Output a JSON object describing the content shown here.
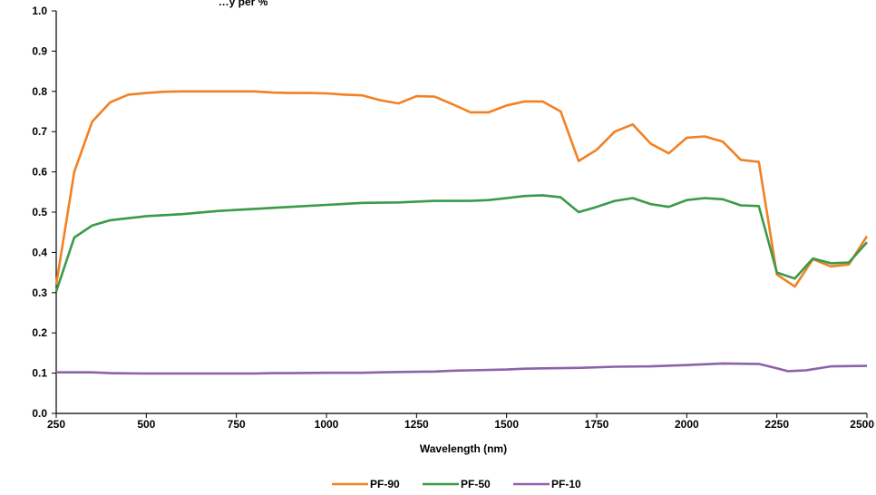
{
  "chart_data": {
    "type": "line",
    "title": "",
    "title_fragment": "…y per %",
    "xlabel": "Wavelength (nm)",
    "ylabel": "",
    "xlim": [
      250,
      2500
    ],
    "ylim": [
      0,
      1.0
    ],
    "x_ticks": [
      250,
      500,
      750,
      1000,
      1250,
      1500,
      1750,
      2000,
      2250,
      2500
    ],
    "x_tick_labels": [
      "250",
      "500",
      "750",
      "1000",
      "1250",
      "1500",
      "1750",
      "2000",
      "2250",
      "2500"
    ],
    "y_ticks": [
      0,
      0.1,
      0.2,
      0.3,
      0.4,
      0.5,
      0.6,
      0.7,
      0.8,
      0.9,
      1.0
    ],
    "y_tick_labels": [
      "0.0",
      "0.1",
      "0.2",
      "0.3",
      "0.4",
      "0.5",
      "0.6",
      "0.7",
      "0.8",
      "0.9",
      "1.0"
    ],
    "grid": false,
    "legend_position": "bottom-center",
    "series": [
      {
        "name": "PF-90",
        "color": "#F28124",
        "points": [
          [
            250,
            0.32
          ],
          [
            300,
            0.6
          ],
          [
            350,
            0.725
          ],
          [
            400,
            0.773
          ],
          [
            450,
            0.792
          ],
          [
            500,
            0.796
          ],
          [
            550,
            0.799
          ],
          [
            600,
            0.8
          ],
          [
            650,
            0.8
          ],
          [
            700,
            0.8
          ],
          [
            750,
            0.8
          ],
          [
            800,
            0.8
          ],
          [
            850,
            0.797
          ],
          [
            900,
            0.796
          ],
          [
            950,
            0.796
          ],
          [
            1000,
            0.795
          ],
          [
            1050,
            0.792
          ],
          [
            1100,
            0.79
          ],
          [
            1150,
            0.778
          ],
          [
            1200,
            0.77
          ],
          [
            1250,
            0.788
          ],
          [
            1300,
            0.787
          ],
          [
            1350,
            0.768
          ],
          [
            1400,
            0.748
          ],
          [
            1450,
            0.748
          ],
          [
            1500,
            0.765
          ],
          [
            1550,
            0.775
          ],
          [
            1600,
            0.775
          ],
          [
            1650,
            0.75
          ],
          [
            1700,
            0.627
          ],
          [
            1750,
            0.655
          ],
          [
            1800,
            0.7
          ],
          [
            1850,
            0.718
          ],
          [
            1900,
            0.67
          ],
          [
            1950,
            0.646
          ],
          [
            2000,
            0.685
          ],
          [
            2050,
            0.688
          ],
          [
            2100,
            0.675
          ],
          [
            2150,
            0.63
          ],
          [
            2200,
            0.625
          ],
          [
            2250,
            0.345
          ],
          [
            2300,
            0.315
          ],
          [
            2350,
            0.383
          ],
          [
            2400,
            0.365
          ],
          [
            2450,
            0.37
          ],
          [
            2500,
            0.44
          ]
        ]
      },
      {
        "name": "PF-50",
        "color": "#3A9A48",
        "points": [
          [
            250,
            0.303
          ],
          [
            300,
            0.437
          ],
          [
            350,
            0.467
          ],
          [
            400,
            0.48
          ],
          [
            450,
            0.485
          ],
          [
            500,
            0.49
          ],
          [
            600,
            0.495
          ],
          [
            700,
            0.503
          ],
          [
            800,
            0.508
          ],
          [
            900,
            0.513
          ],
          [
            1000,
            0.518
          ],
          [
            1100,
            0.523
          ],
          [
            1200,
            0.524
          ],
          [
            1300,
            0.528
          ],
          [
            1400,
            0.528
          ],
          [
            1450,
            0.53
          ],
          [
            1500,
            0.535
          ],
          [
            1550,
            0.54
          ],
          [
            1600,
            0.542
          ],
          [
            1650,
            0.537
          ],
          [
            1700,
            0.5
          ],
          [
            1750,
            0.513
          ],
          [
            1800,
            0.528
          ],
          [
            1850,
            0.535
          ],
          [
            1900,
            0.52
          ],
          [
            1950,
            0.513
          ],
          [
            2000,
            0.53
          ],
          [
            2050,
            0.535
          ],
          [
            2100,
            0.532
          ],
          [
            2150,
            0.517
          ],
          [
            2200,
            0.515
          ],
          [
            2250,
            0.35
          ],
          [
            2300,
            0.335
          ],
          [
            2350,
            0.385
          ],
          [
            2400,
            0.373
          ],
          [
            2450,
            0.375
          ],
          [
            2500,
            0.425
          ]
        ]
      },
      {
        "name": "PF-10",
        "color": "#8C62AA",
        "points": [
          [
            250,
            0.102
          ],
          [
            300,
            0.102
          ],
          [
            350,
            0.102
          ],
          [
            400,
            0.1
          ],
          [
            500,
            0.099
          ],
          [
            600,
            0.099
          ],
          [
            700,
            0.099
          ],
          [
            800,
            0.099
          ],
          [
            850,
            0.1
          ],
          [
            900,
            0.1
          ],
          [
            1000,
            0.101
          ],
          [
            1100,
            0.101
          ],
          [
            1150,
            0.102
          ],
          [
            1200,
            0.103
          ],
          [
            1300,
            0.104
          ],
          [
            1350,
            0.106
          ],
          [
            1400,
            0.107
          ],
          [
            1500,
            0.109
          ],
          [
            1550,
            0.111
          ],
          [
            1600,
            0.112
          ],
          [
            1700,
            0.113
          ],
          [
            1800,
            0.116
          ],
          [
            1900,
            0.117
          ],
          [
            2000,
            0.12
          ],
          [
            2050,
            0.122
          ],
          [
            2100,
            0.124
          ],
          [
            2200,
            0.123
          ],
          [
            2250,
            0.112
          ],
          [
            2280,
            0.105
          ],
          [
            2330,
            0.107
          ],
          [
            2400,
            0.117
          ],
          [
            2500,
            0.118
          ]
        ]
      }
    ]
  }
}
